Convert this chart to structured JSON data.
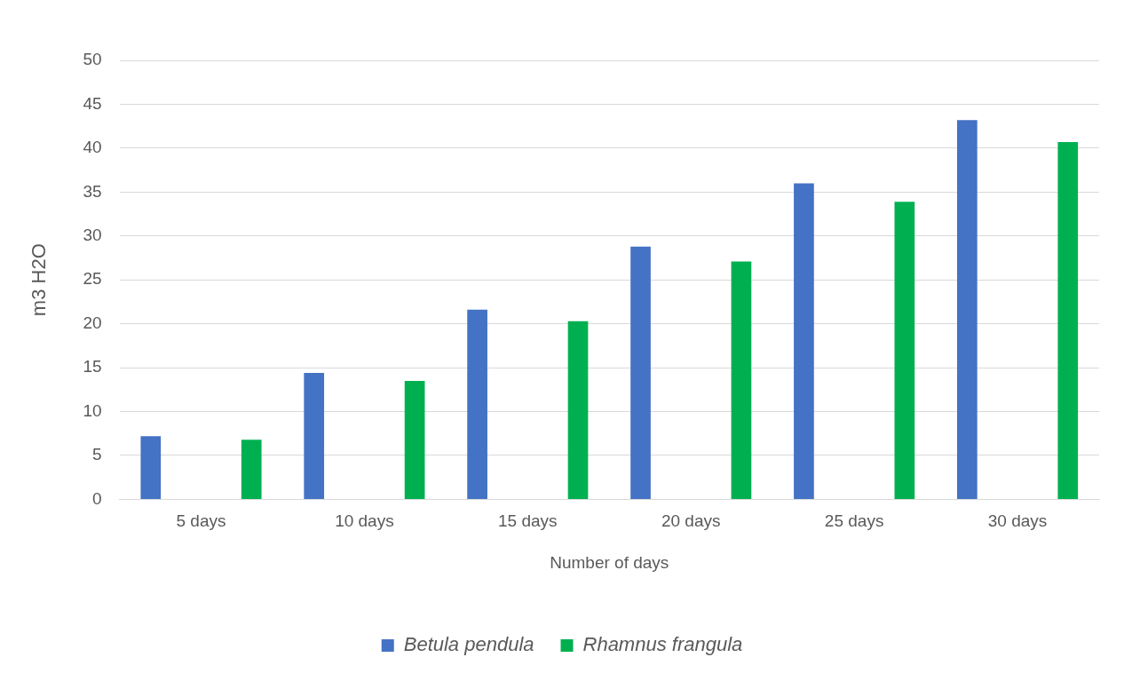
{
  "chart_data": {
    "type": "bar",
    "xlabel": "Number of days",
    "ylabel": "m3 H2O",
    "categories": [
      "5 days",
      "10 days",
      "15 days",
      "20 days",
      "25 days",
      "30 days"
    ],
    "series": [
      {
        "name": "Betula pendula",
        "color": "#4472c4",
        "values": [
          7.2,
          14.4,
          21.6,
          28.8,
          36,
          43.2
        ]
      },
      {
        "name": "Rhamnus frangula",
        "color": "#00b050",
        "values": [
          6.8,
          13.5,
          20.3,
          27.1,
          33.9,
          40.7
        ]
      }
    ],
    "ylim": [
      0,
      50
    ],
    "yticks": [
      0,
      5,
      10,
      15,
      20,
      25,
      30,
      35,
      40,
      45,
      50
    ],
    "grid": "y",
    "legend": "bottom"
  }
}
